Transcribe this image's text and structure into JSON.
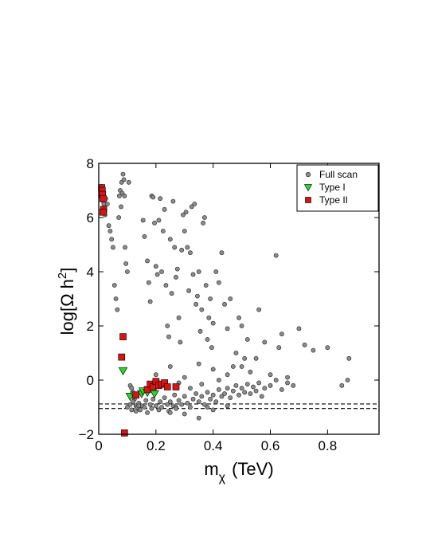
{
  "chart_data": {
    "type": "scatter",
    "title": "",
    "xlabel": "m",
    "xlabel_sub": "χ",
    "xlabel_unit": "(TeV)",
    "ylabel": "log[Ω h",
    "ylabel_sup": "2",
    "ylabel_close": "]",
    "xlim": [
      0,
      0.98
    ],
    "ylim": [
      -2,
      8
    ],
    "xticks": [
      {
        "value": 0,
        "label": "0"
      },
      {
        "value": 0.2,
        "label": "0.2"
      },
      {
        "value": 0.4,
        "label": "0.4"
      },
      {
        "value": 0.6,
        "label": "0.6"
      },
      {
        "value": 0.8,
        "label": "0.8"
      }
    ],
    "yticks": [
      {
        "value": -2,
        "label": "−2"
      },
      {
        "value": 0,
        "label": "0"
      },
      {
        "value": 2,
        "label": "2"
      },
      {
        "value": 4,
        "label": "4"
      },
      {
        "value": 6,
        "label": "6"
      },
      {
        "value": 8,
        "label": "8"
      }
    ],
    "grid": false,
    "legend_position": "top-right",
    "reference_lines": [
      {
        "y": -0.88,
        "style": "dashed"
      },
      {
        "y": -1.05,
        "style": "dashed"
      }
    ],
    "colors": {
      "full_scan": "#8c8c8c",
      "type_1": "#22dd22",
      "type_2": "#dd1111",
      "axis": "#000000"
    },
    "series": [
      {
        "name": "Full scan",
        "marker": "circle",
        "points": [
          [
            0.01,
            7.15
          ],
          [
            0.012,
            7.05
          ],
          [
            0.013,
            6.9
          ],
          [
            0.015,
            6.75
          ],
          [
            0.016,
            6.6
          ],
          [
            0.018,
            6.5
          ],
          [
            0.02,
            6.3
          ],
          [
            0.022,
            6.1
          ],
          [
            0.025,
            6.7
          ],
          [
            0.03,
            6.5
          ],
          [
            0.035,
            5.7
          ],
          [
            0.04,
            5.5
          ],
          [
            0.045,
            5.2
          ],
          [
            0.05,
            4.9
          ],
          [
            0.055,
            3.5
          ],
          [
            0.06,
            3.0
          ],
          [
            0.065,
            2.6
          ],
          [
            0.07,
            6.0
          ],
          [
            0.072,
            6.8
          ],
          [
            0.075,
            7.0
          ],
          [
            0.078,
            6.4
          ],
          [
            0.08,
            7.3
          ],
          [
            0.082,
            6.9
          ],
          [
            0.085,
            7.6
          ],
          [
            0.088,
            7.4
          ],
          [
            0.09,
            6.8
          ],
          [
            0.092,
            4.9
          ],
          [
            0.095,
            4.3
          ],
          [
            0.1,
            4.0
          ],
          [
            0.105,
            7.3
          ],
          [
            0.11,
            -0.2
          ],
          [
            0.115,
            -0.3
          ],
          [
            0.12,
            -0.45
          ],
          [
            0.125,
            -0.7
          ],
          [
            0.13,
            -0.95
          ],
          [
            0.135,
            -1.0
          ],
          [
            0.14,
            -0.85
          ],
          [
            0.15,
            -0.95
          ],
          [
            0.155,
            5.9
          ],
          [
            0.16,
            5.3
          ],
          [
            0.17,
            4.4
          ],
          [
            0.175,
            3.6
          ],
          [
            0.18,
            2.9
          ],
          [
            0.185,
            6.8
          ],
          [
            0.19,
            6.75
          ],
          [
            0.195,
            5.8
          ],
          [
            0.2,
            4.2
          ],
          [
            0.205,
            3.9
          ],
          [
            0.21,
            5.9
          ],
          [
            0.215,
            6.7
          ],
          [
            0.22,
            4.0
          ],
          [
            0.225,
            5.5
          ],
          [
            0.23,
            6.3
          ],
          [
            0.235,
            3.5
          ],
          [
            0.24,
            2.0
          ],
          [
            0.245,
            1.6
          ],
          [
            0.25,
            5.2
          ],
          [
            0.255,
            3.2
          ],
          [
            0.26,
            6.6
          ],
          [
            0.265,
            4.9
          ],
          [
            0.27,
            3.8
          ],
          [
            0.275,
            4.1
          ],
          [
            0.28,
            2.3
          ],
          [
            0.285,
            1.4
          ],
          [
            0.29,
            4.8
          ],
          [
            0.295,
            6.1
          ],
          [
            0.3,
            5.5
          ],
          [
            0.305,
            6.2
          ],
          [
            0.31,
            4.9
          ],
          [
            0.315,
            3.3
          ],
          [
            0.32,
            4.7
          ],
          [
            0.325,
            6.4
          ],
          [
            0.33,
            3.9
          ],
          [
            0.335,
            6.5
          ],
          [
            0.34,
            2.8
          ],
          [
            0.345,
            3.1
          ],
          [
            0.35,
            4.0
          ],
          [
            0.355,
            1.8
          ],
          [
            0.36,
            2.6
          ],
          [
            0.365,
            5.8
          ],
          [
            0.37,
            6.0
          ],
          [
            0.375,
            3.5
          ],
          [
            0.38,
            1.5
          ],
          [
            0.385,
            2.3
          ],
          [
            0.39,
            3.0
          ],
          [
            0.395,
            1.2
          ],
          [
            0.4,
            2.1
          ],
          [
            0.41,
            4.0
          ],
          [
            0.42,
            3.6
          ],
          [
            0.43,
            4.7
          ],
          [
            0.44,
            2.8
          ],
          [
            0.45,
            1.9
          ],
          [
            0.46,
            3.0
          ],
          [
            0.47,
            0.5
          ],
          [
            0.48,
            1.0
          ],
          [
            0.49,
            2.3
          ],
          [
            0.5,
            2.0
          ],
          [
            0.51,
            0.8
          ],
          [
            0.52,
            1.5
          ],
          [
            0.53,
            0.3
          ],
          [
            0.55,
            0.8
          ],
          [
            0.56,
            2.6
          ],
          [
            0.58,
            1.4
          ],
          [
            0.6,
            0.2
          ],
          [
            0.62,
            4.6
          ],
          [
            0.63,
            1.2
          ],
          [
            0.64,
            1.7
          ],
          [
            0.66,
            0.1
          ],
          [
            0.7,
            1.9
          ],
          [
            0.72,
            1.3
          ],
          [
            0.75,
            1.1
          ],
          [
            0.8,
            1.2
          ],
          [
            0.85,
            -0.2
          ],
          [
            0.87,
            0.0
          ],
          [
            0.875,
            0.8
          ],
          [
            0.1,
            -1.0
          ],
          [
            0.11,
            -0.9
          ],
          [
            0.115,
            -1.1
          ],
          [
            0.12,
            -0.8
          ],
          [
            0.13,
            -1.15
          ],
          [
            0.14,
            -0.95
          ],
          [
            0.145,
            -1.1
          ],
          [
            0.16,
            -1.0
          ],
          [
            0.165,
            -0.75
          ],
          [
            0.17,
            -1.2
          ],
          [
            0.18,
            -0.9
          ],
          [
            0.185,
            -1.05
          ],
          [
            0.19,
            -0.7
          ],
          [
            0.2,
            -0.95
          ],
          [
            0.21,
            -1.1
          ],
          [
            0.215,
            -0.8
          ],
          [
            0.22,
            -1.0
          ],
          [
            0.23,
            -0.65
          ],
          [
            0.24,
            -0.9
          ],
          [
            0.245,
            -1.15
          ],
          [
            0.25,
            -0.8
          ],
          [
            0.26,
            -0.95
          ],
          [
            0.265,
            -0.55
          ],
          [
            0.27,
            -1.0
          ],
          [
            0.28,
            -0.75
          ],
          [
            0.29,
            -0.9
          ],
          [
            0.3,
            -0.6
          ],
          [
            0.31,
            -0.85
          ],
          [
            0.32,
            -1.0
          ],
          [
            0.33,
            -0.7
          ],
          [
            0.34,
            -0.5
          ],
          [
            0.35,
            -0.8
          ],
          [
            0.36,
            -0.6
          ],
          [
            0.37,
            -0.9
          ],
          [
            0.38,
            -0.45
          ],
          [
            0.39,
            -0.7
          ],
          [
            0.4,
            -0.55
          ],
          [
            0.41,
            -0.8
          ],
          [
            0.42,
            -0.35
          ],
          [
            0.43,
            -0.6
          ],
          [
            0.44,
            -0.5
          ],
          [
            0.45,
            -0.3
          ],
          [
            0.46,
            -0.65
          ],
          [
            0.47,
            -0.4
          ],
          [
            0.48,
            -0.2
          ],
          [
            0.49,
            -0.55
          ],
          [
            0.5,
            -0.3
          ],
          [
            0.51,
            -0.45
          ],
          [
            0.52,
            -0.15
          ],
          [
            0.53,
            -0.5
          ],
          [
            0.54,
            -0.25
          ],
          [
            0.55,
            -0.4
          ],
          [
            0.56,
            -0.1
          ],
          [
            0.57,
            -0.6
          ],
          [
            0.58,
            -0.3
          ],
          [
            0.6,
            -0.2
          ],
          [
            0.62,
            0.0
          ],
          [
            0.64,
            -0.35
          ],
          [
            0.66,
            -0.1
          ],
          [
            0.68,
            -0.2
          ],
          [
            0.35,
            -1.4
          ],
          [
            0.3,
            -1.25
          ],
          [
            0.25,
            -1.2
          ],
          [
            0.4,
            -1.1
          ],
          [
            0.45,
            -0.95
          ],
          [
            0.2,
            0.2
          ],
          [
            0.25,
            0.5
          ],
          [
            0.3,
            0.1
          ],
          [
            0.35,
            0.6
          ],
          [
            0.4,
            0.4
          ],
          [
            0.45,
            0.2
          ],
          [
            0.5,
            0.5
          ],
          [
            0.18,
            -0.3
          ],
          [
            0.22,
            -0.2
          ],
          [
            0.28,
            -0.1
          ],
          [
            0.32,
            -0.3
          ],
          [
            0.36,
            -0.15
          ],
          [
            0.42,
            0.0
          ],
          [
            0.38,
            -1.0
          ],
          [
            0.27,
            -1.05
          ]
        ]
      },
      {
        "name": "Type I",
        "marker": "triangle-down",
        "points": [
          [
            0.085,
            0.35
          ],
          [
            0.11,
            -0.6
          ],
          [
            0.125,
            -0.55
          ],
          [
            0.15,
            -0.5
          ],
          [
            0.155,
            -0.4
          ],
          [
            0.17,
            -0.45
          ],
          [
            0.195,
            -0.5
          ]
        ]
      },
      {
        "name": "Type II",
        "marker": "square",
        "points": [
          [
            0.01,
            7.1
          ],
          [
            0.012,
            7.0
          ],
          [
            0.013,
            6.85
          ],
          [
            0.015,
            6.7
          ],
          [
            0.017,
            6.3
          ],
          [
            0.015,
            6.2
          ],
          [
            0.08,
            0.85
          ],
          [
            0.085,
            1.6
          ],
          [
            0.09,
            -1.95
          ],
          [
            0.13,
            -0.55
          ],
          [
            0.17,
            -0.35
          ],
          [
            0.18,
            -0.15
          ],
          [
            0.19,
            -0.25
          ],
          [
            0.2,
            -0.05
          ],
          [
            0.21,
            -0.2
          ],
          [
            0.22,
            -0.15
          ],
          [
            0.23,
            -0.1
          ],
          [
            0.24,
            -0.25
          ],
          [
            0.27,
            -0.25
          ]
        ]
      }
    ]
  }
}
